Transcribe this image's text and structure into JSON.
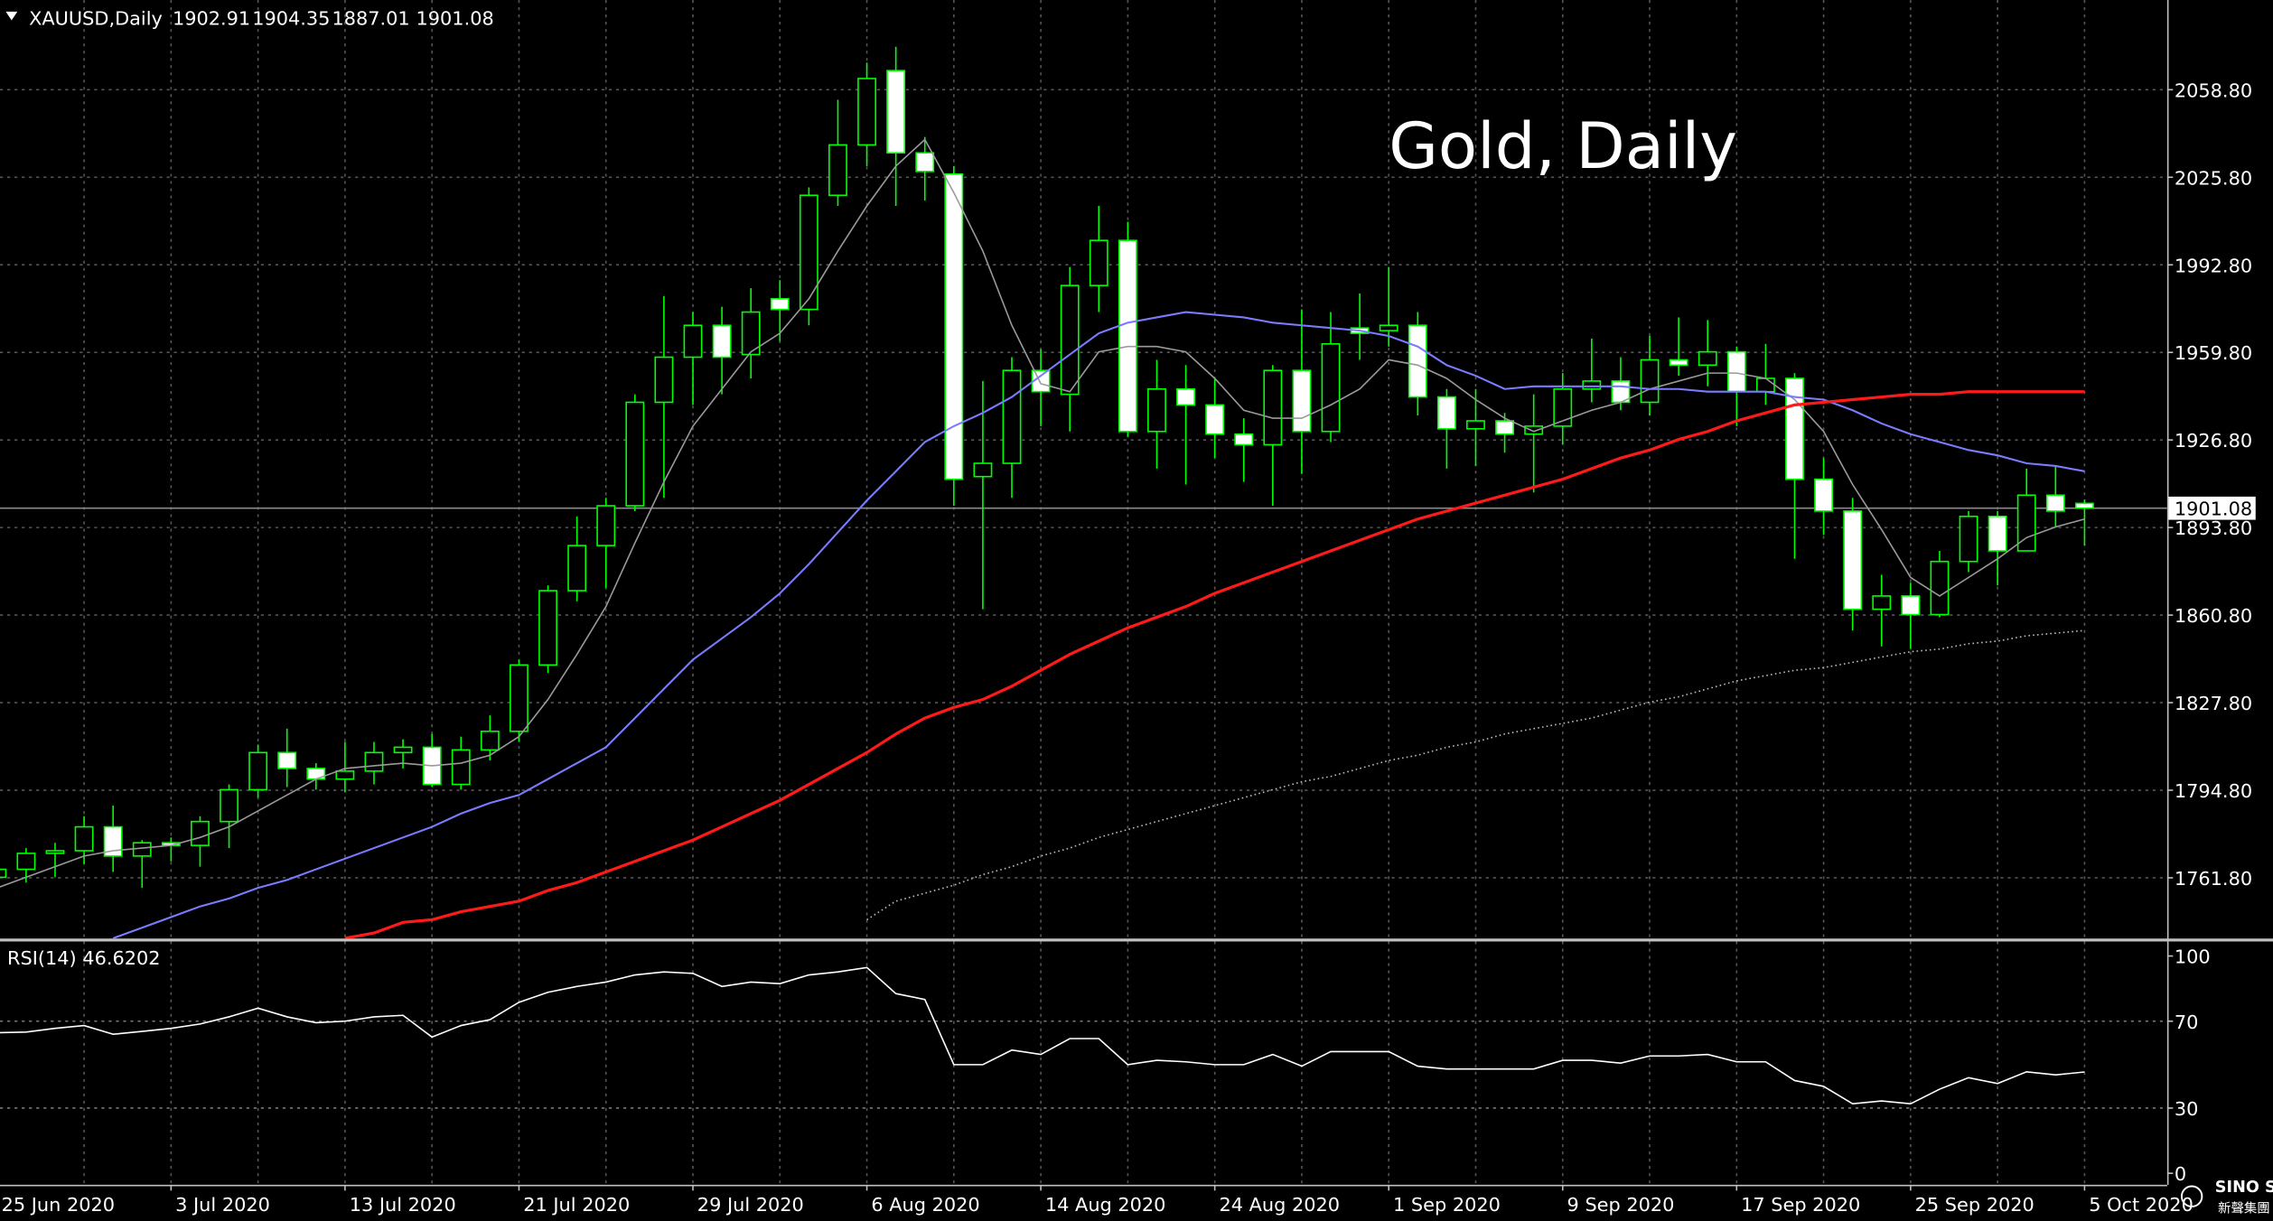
{
  "chart_data": {
    "type": "candlestick",
    "title": "Gold, Daily",
    "symbol": "XAUUSD,Daily",
    "categories": [
      "25 Jun 2020",
      null,
      null,
      null,
      null,
      null,
      "3 Jul 2020",
      null,
      null,
      null,
      null,
      null,
      "13 Jul 2020",
      null,
      null,
      null,
      null,
      null,
      "21 Jul 2020",
      null,
      null,
      null,
      null,
      null,
      "29 Jul 2020",
      null,
      null,
      null,
      null,
      null,
      "6 Aug 2020",
      null,
      null,
      null,
      null,
      null,
      "14 Aug 2020",
      null,
      null,
      null,
      null,
      null,
      "24 Aug 2020",
      null,
      null,
      null,
      null,
      null,
      "1 Sep 2020",
      null,
      null,
      null,
      null,
      null,
      "9 Sep 2020",
      null,
      null,
      null,
      null,
      null,
      "17 Sep 2020",
      null,
      null,
      null,
      null,
      null,
      "25 Sep 2020",
      null,
      null,
      null,
      null,
      null,
      "5 Oct 2020"
    ],
    "open": [
      1762,
      1765,
      1771,
      1772,
      1781,
      1770,
      1775,
      1774,
      1783,
      1795,
      1809,
      1803,
      1799,
      1802,
      1809,
      1811,
      1797,
      1810,
      1817,
      1842,
      1870,
      1887,
      1902,
      1941,
      1958,
      1970,
      1959,
      1980,
      1976,
      2019,
      2038,
      2066,
      2035,
      2027,
      1913,
      1918,
      1953,
      1944,
      1985,
      2002,
      1930,
      1946,
      1940,
      1929,
      1925,
      1953,
      1930,
      1969,
      1968,
      1970,
      1943,
      1931,
      1934,
      1929,
      1932,
      1946,
      1949,
      1941,
      1957,
      1955,
      1960,
      1945,
      1950,
      1912,
      1900,
      1863,
      1868,
      1861,
      1881,
      1898,
      1885,
      1906,
      1902.91
    ],
    "high": [
      1768,
      1773,
      1775,
      1785,
      1789,
      1776,
      1777,
      1785,
      1797,
      1812,
      1818,
      1805,
      1813,
      1813,
      1814,
      1816,
      1815,
      1823,
      1844,
      1872,
      1898,
      1905,
      1944,
      1981,
      1975,
      1977,
      1984,
      1987,
      2022,
      2055,
      2069,
      2075,
      2041,
      2030,
      1949,
      1958,
      1961,
      1992,
      2015,
      2009,
      1957,
      1955,
      1950,
      1935,
      1955,
      1976,
      1975,
      1982,
      1992,
      1975,
      1946,
      1946,
      1937,
      1944,
      1952,
      1965,
      1958,
      1966,
      1973,
      1972,
      1962,
      1963,
      1952,
      1920,
      1905,
      1876,
      1873,
      1885,
      1900,
      1900,
      1916,
      1917,
      1904.35
    ],
    "low": [
      1750,
      1760,
      1762,
      1767,
      1764,
      1758,
      1768,
      1766,
      1773,
      1792,
      1796,
      1795,
      1794,
      1797,
      1803,
      1796,
      1795,
      1806,
      1813,
      1839,
      1866,
      1871,
      1900,
      1905,
      1940,
      1944,
      1950,
      1964,
      1970,
      2015,
      2030,
      2015,
      2017,
      1902,
      1863,
      1905,
      1932,
      1930,
      1975,
      1928,
      1916,
      1910,
      1920,
      1911,
      1902,
      1914,
      1926,
      1957,
      1962,
      1936,
      1916,
      1917,
      1922,
      1907,
      1925,
      1941,
      1938,
      1936,
      1951,
      1947,
      1932,
      1940,
      1882,
      1891,
      1855,
      1849,
      1848,
      1860,
      1877,
      1872,
      1885,
      1894,
      1887.01
    ],
    "close": [
      1765,
      1771,
      1772,
      1781,
      1770,
      1775,
      1774,
      1783,
      1795,
      1809,
      1803,
      1799,
      1802,
      1809,
      1811,
      1797,
      1810,
      1817,
      1842,
      1870,
      1887,
      1902,
      1941,
      1958,
      1970,
      1958,
      1975,
      1976,
      2019,
      2038,
      2063,
      2035,
      2028,
      1912,
      1918,
      1953,
      1945,
      1985,
      2002,
      1930,
      1946,
      1940,
      1929,
      1925,
      1953,
      1930,
      1963,
      1967,
      1970,
      1943,
      1931,
      1934,
      1929,
      1932,
      1946,
      1949,
      1941,
      1957,
      1955,
      1960,
      1945,
      1950,
      1912,
      1900,
      1863,
      1868,
      1861,
      1881,
      1898,
      1885,
      1906,
      1900,
      1901.08
    ],
    "up_color": "#000000",
    "down_color": "#ffffff",
    "wick_color": "#00ff00",
    "moving_averages": [
      {
        "color": "#9a9a9a",
        "style": "solid",
        "width": 1,
        "values": [
          1758,
          1762,
          1766,
          1770,
          1772,
          1773,
          1774,
          1777,
          1781,
          1787,
          1793,
          1799,
          1803,
          1804,
          1805,
          1804,
          1805,
          1808,
          1815,
          1829,
          1846,
          1864,
          1888,
          1911,
          1932,
          1946,
          1960,
          1967,
          1980,
          1998,
          2015,
          2030,
          2040,
          2020,
          1998,
          1970,
          1948,
          1945,
          1960,
          1962,
          1962,
          1960,
          1950,
          1938,
          1935,
          1935,
          1940,
          1946,
          1957,
          1955,
          1950,
          1942,
          1935,
          1930,
          1934,
          1938,
          1941,
          1946,
          1949,
          1952,
          1952,
          1950,
          1942,
          1930,
          1910,
          1893,
          1875,
          1868,
          1875,
          1882,
          1890,
          1894,
          1897
        ]
      },
      {
        "color": "#7b7bff",
        "style": "solid",
        "width": 1.3,
        "values": [
          null,
          null,
          null,
          null,
          1739,
          1743,
          1747,
          1751,
          1754,
          1758,
          1761,
          1765,
          1769,
          1773,
          1777,
          1781,
          1786,
          1790,
          1793,
          1799,
          1805,
          1811,
          1822,
          1833,
          1844,
          1852,
          1860,
          1869,
          1880,
          1892,
          1904,
          1915,
          1926,
          1932,
          1937,
          1943,
          1951,
          1959,
          1967,
          1971,
          1973,
          1975,
          1974,
          1973,
          1971,
          1970,
          1969,
          1968,
          1966,
          1962,
          1955,
          1951,
          1946,
          1947,
          1947,
          1947,
          1947,
          1946,
          1946,
          1945,
          1945,
          1945,
          1943,
          1942,
          1938,
          1933,
          1929,
          1926,
          1923,
          1921,
          1918,
          1917,
          1915
        ]
      },
      {
        "color": "#ff1a1a",
        "style": "solid",
        "width": 2,
        "values": [
          null,
          null,
          null,
          null,
          null,
          null,
          null,
          null,
          null,
          null,
          null,
          null,
          1739,
          1741,
          1745,
          1746,
          1749,
          1751,
          1753,
          1757,
          1760,
          1764,
          1768,
          1772,
          1776,
          1781,
          1786,
          1791,
          1797,
          1803,
          1809,
          1816,
          1822,
          1826,
          1829,
          1834,
          1840,
          1846,
          1851,
          1856,
          1860,
          1864,
          1869,
          1873,
          1877,
          1881,
          1885,
          1889,
          1893,
          1897,
          1900,
          1903,
          1906,
          1909,
          1912,
          1916,
          1920,
          1923,
          1927,
          1930,
          1934,
          1937,
          1940,
          1941,
          1942,
          1943,
          1944,
          1944,
          1945,
          1945,
          1945,
          1945,
          1945
        ]
      },
      {
        "color": "#bbbbbb",
        "style": "dotted",
        "width": 1,
        "values": [
          null,
          null,
          null,
          null,
          null,
          null,
          null,
          null,
          null,
          null,
          null,
          null,
          null,
          null,
          null,
          null,
          null,
          null,
          null,
          null,
          null,
          null,
          null,
          null,
          null,
          null,
          null,
          null,
          null,
          null,
          1746,
          1753,
          1756,
          1759,
          1763,
          1766,
          1770,
          1773,
          1777,
          1780,
          1783,
          1786,
          1789,
          1792,
          1795,
          1798,
          1800,
          1803,
          1806,
          1808,
          1811,
          1813,
          1816,
          1818,
          1820,
          1822,
          1825,
          1828,
          1830,
          1833,
          1836,
          1838,
          1840,
          1841,
          1843,
          1845,
          1847,
          1848,
          1850,
          1851,
          1853,
          1854,
          1855
        ]
      }
    ],
    "ylim": [
      1738.9,
      2092.6
    ],
    "yticks": [
      {
        "value": 2058.8,
        "label": "2058.80"
      },
      {
        "value": 2025.8,
        "label": "2025.80"
      },
      {
        "value": 1992.8,
        "label": "1992.80"
      },
      {
        "value": 1959.8,
        "label": "1959.80"
      },
      {
        "value": 1926.8,
        "label": "1926.80"
      },
      {
        "value": 1893.8,
        "label": "1893.80"
      },
      {
        "value": 1860.8,
        "label": "1860.80"
      },
      {
        "value": 1827.8,
        "label": "1827.80"
      },
      {
        "value": 1794.8,
        "label": "1794.80"
      },
      {
        "value": 1761.8,
        "label": "1761.80"
      }
    ],
    "grid": true,
    "indicator": {
      "title": "RSI(14) 46.6202",
      "color": "#ffffff",
      "values": [
        64.7,
        65,
        66.7,
        68,
        64,
        65.3,
        66.7,
        68.7,
        72,
        76,
        72,
        69.3,
        70,
        72,
        72.7,
        62.7,
        68,
        70.7,
        78.7,
        83.3,
        86,
        88,
        91.3,
        92.7,
        92,
        86,
        88,
        87.3,
        91.3,
        92.7,
        94.7,
        82.7,
        80,
        50,
        50,
        56.7,
        54.7,
        62,
        62,
        50,
        52,
        51.3,
        50,
        50,
        54.7,
        49.3,
        56,
        56,
        56,
        49.3,
        48,
        48,
        48,
        48,
        52,
        52,
        50.7,
        54,
        54,
        54.7,
        51.3,
        51.3,
        42.7,
        40,
        32,
        33.3,
        32,
        38.7,
        44,
        41.3,
        46.7,
        45.3,
        46.6202
      ],
      "ylim": [
        -5.3,
        106.7
      ],
      "yticks": [
        100,
        70,
        30,
        0
      ],
      "levels": [
        70,
        30
      ]
    },
    "logo": {
      "name": "SINO SOUND",
      "subtitle": "新聲集團"
    }
  }
}
